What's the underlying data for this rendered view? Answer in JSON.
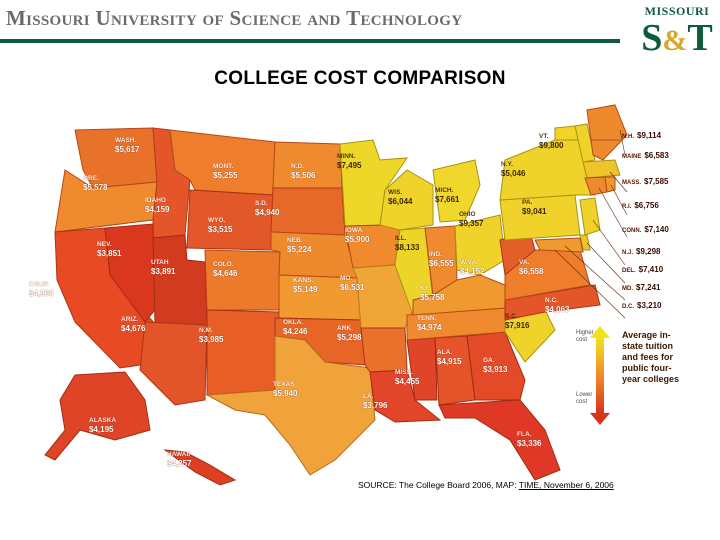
{
  "header": {
    "title_parts": [
      "M",
      "issouri ",
      "U",
      "niversity of ",
      "S",
      "cience and ",
      "T",
      "echnology"
    ],
    "brand_color": "#0e5b3b"
  },
  "logo": {
    "top": "MISSOURI",
    "s": "S",
    "amp": "&",
    "t": "T"
  },
  "page_title": "COLLEGE COST COMPARISON",
  "map": {
    "states": [
      {
        "name": "WASH.",
        "value": "$5,617"
      },
      {
        "name": "ORE.",
        "value": "$5,578"
      },
      {
        "name": "IDAHO",
        "value": "$4,159"
      },
      {
        "name": "MONT.",
        "value": "$5,255"
      },
      {
        "name": "N.D.",
        "value": "$5,506"
      },
      {
        "name": "S.D.",
        "value": "$4,940"
      },
      {
        "name": "WYO.",
        "value": "$3,515"
      },
      {
        "name": "MINN.",
        "value": "$7,495"
      },
      {
        "name": "WIS.",
        "value": "$6,044"
      },
      {
        "name": "MICH.",
        "value": "$7,661"
      },
      {
        "name": "NEV.",
        "value": "$3,851"
      },
      {
        "name": "UTAH",
        "value": "$3,891"
      },
      {
        "name": "COLO.",
        "value": "$4,646"
      },
      {
        "name": "NEB.",
        "value": "$5,224"
      },
      {
        "name": "IOWA",
        "value": "$5,900"
      },
      {
        "name": "ILL.",
        "value": "$8,133"
      },
      {
        "name": "IND.",
        "value": "$6,555"
      },
      {
        "name": "OHIO",
        "value": "$9,357"
      },
      {
        "name": "PA.",
        "value": "$9,041"
      },
      {
        "name": "N.Y.",
        "value": "$5,046"
      },
      {
        "name": "VT.",
        "value": "$9,800"
      },
      {
        "name": "CALIF.",
        "value": "$4,560"
      },
      {
        "name": "KANS.",
        "value": "$5,149"
      },
      {
        "name": "MO.",
        "value": "$6,531"
      },
      {
        "name": "W.VA.",
        "value": "$4,152"
      },
      {
        "name": "VA.",
        "value": "$6,558"
      },
      {
        "name": "KY.",
        "value": "$5,758"
      },
      {
        "name": "ARIZ.",
        "value": "$4,676"
      },
      {
        "name": "N.M.",
        "value": "$3,985"
      },
      {
        "name": "OKLA.",
        "value": "$4,246"
      },
      {
        "name": "ARK.",
        "value": "$5,298"
      },
      {
        "name": "TENN.",
        "value": "$4,974"
      },
      {
        "name": "N.C.",
        "value": "$4,063"
      },
      {
        "name": "S.C.",
        "value": "$7,916"
      },
      {
        "name": "TEXAS",
        "value": "$5,940"
      },
      {
        "name": "MISS.",
        "value": "$4,455"
      },
      {
        "name": "ALA.",
        "value": "$4,915"
      },
      {
        "name": "GA.",
        "value": "$3,913"
      },
      {
        "name": "LA.",
        "value": "$3,796"
      },
      {
        "name": "FLA.",
        "value": "$3,336"
      },
      {
        "name": "ALASKA",
        "value": "$4,195"
      },
      {
        "name": "HAWAII",
        "value": "$4,257"
      }
    ],
    "northeast": [
      {
        "name": "N.H.",
        "value": "$9,114"
      },
      {
        "name": "MAINE",
        "value": "$6,583"
      },
      {
        "name": "MASS.",
        "value": "$7,585"
      },
      {
        "name": "R.I.",
        "value": "$6,756"
      },
      {
        "name": "CONN.",
        "value": "$7,140"
      },
      {
        "name": "N.J.",
        "value": "$9,298"
      },
      {
        "name": "DEL.",
        "value": "$7,410"
      },
      {
        "name": "MD.",
        "value": "$7,241"
      },
      {
        "name": "D.C.",
        "value": "$3,210"
      }
    ],
    "legend": {
      "title": "Average in-state tuition and fees for public four-year colleges",
      "high_label": "Higher cost",
      "low_label": "Lower cost",
      "colors": {
        "high": "#f2e21b",
        "mid": "#f08a2a",
        "low": "#e2401f"
      }
    }
  },
  "source": {
    "prefix": "SOURCE: The College Board 2006, MAP: ",
    "underlined": "TIME, November 6, 2006"
  }
}
